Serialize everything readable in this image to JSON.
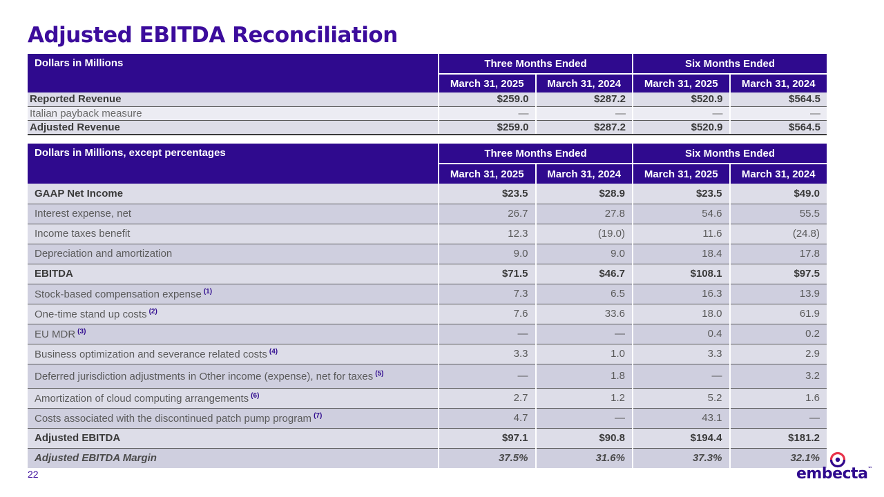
{
  "title": "Adjusted EBITDA Reconciliation",
  "page_number": "22",
  "logo_text": "embecta",
  "logo_tm": "™",
  "colors": {
    "brand": "#2f0a8e",
    "title": "#3c0c9c",
    "row_light": "#dddde8",
    "row_dark": "#cfcfdf"
  },
  "table1": {
    "header_label": "Dollars in Millions",
    "groups": [
      "Three Months Ended",
      "Six Months Ended"
    ],
    "dates": [
      "March 31, 2025",
      "March 31, 2024",
      "March 31, 2025",
      "March 31, 2024"
    ],
    "rows": [
      {
        "label": "Reported Revenue",
        "values": [
          "$259.0",
          "$287.2",
          "$520.9",
          "$564.5"
        ]
      },
      {
        "label": "Italian payback measure",
        "values": [
          "—",
          "—",
          "—",
          "—"
        ]
      },
      {
        "label": "Adjusted Revenue",
        "values": [
          "$259.0",
          "$287.2",
          "$520.9",
          "$564.5"
        ]
      }
    ]
  },
  "table2": {
    "header_label": "Dollars in Millions, except percentages",
    "groups": [
      "Three Months Ended",
      "Six Months Ended"
    ],
    "dates": [
      "March 31, 2025",
      "March 31, 2024",
      "March 31, 2025",
      "March 31, 2024"
    ],
    "rows": [
      {
        "label": "GAAP Net Income",
        "note": "",
        "values": [
          "$23.5",
          "$28.9",
          "$23.5",
          "$49.0"
        ]
      },
      {
        "label": "Interest expense, net",
        "note": "",
        "values": [
          "26.7",
          "27.8",
          "54.6",
          "55.5"
        ]
      },
      {
        "label": "Income taxes benefit",
        "note": "",
        "values": [
          "12.3",
          "(19.0)",
          "11.6",
          "(24.8)"
        ]
      },
      {
        "label": "Depreciation and amortization",
        "note": "",
        "values": [
          "9.0",
          "9.0",
          "18.4",
          "17.8"
        ]
      },
      {
        "label": "EBITDA",
        "note": "",
        "values": [
          "$71.5",
          "$46.7",
          "$108.1",
          "$97.5"
        ]
      },
      {
        "label": "Stock-based compensation expense",
        "note": "(1)",
        "values": [
          "7.3",
          "6.5",
          "16.3",
          "13.9"
        ]
      },
      {
        "label": "One-time stand up costs",
        "note": "(2)",
        "values": [
          "7.6",
          "33.6",
          "18.0",
          "61.9"
        ]
      },
      {
        "label": "EU MDR",
        "note": "(3)",
        "values": [
          "—",
          "—",
          "0.4",
          "0.2"
        ]
      },
      {
        "label": "Business optimization and severance related costs",
        "note": "(4)",
        "values": [
          "3.3",
          "1.0",
          "3.3",
          "2.9"
        ]
      },
      {
        "label": "Deferred jurisdiction adjustments in Other income (expense), net for taxes",
        "note": "(5)",
        "values": [
          "—",
          "1.8",
          "—",
          "3.2"
        ]
      },
      {
        "label": "Amortization of cloud computing arrangements",
        "note": "(6)",
        "values": [
          "2.7",
          "1.2",
          "5.2",
          "1.6"
        ]
      },
      {
        "label": "Costs associated with the discontinued patch pump program",
        "note": "(7)",
        "values": [
          "4.7",
          "—",
          "43.1",
          "—"
        ]
      },
      {
        "label": "Adjusted EBITDA",
        "note": "",
        "values": [
          "$97.1",
          "$90.8",
          "$194.4",
          "$181.2"
        ]
      },
      {
        "label": "Adjusted EBITDA Margin",
        "note": "",
        "values": [
          "37.5%",
          "31.6%",
          "37.3%",
          "32.1%"
        ]
      }
    ]
  }
}
